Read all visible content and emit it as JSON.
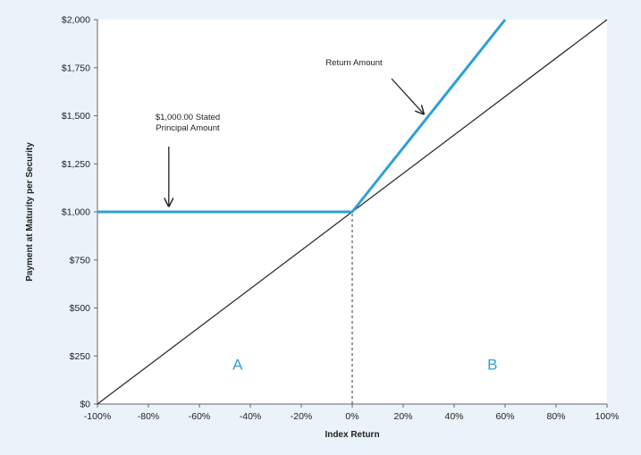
{
  "colors": {
    "payoff": "#2e9fd6",
    "reference": "#222222",
    "region_label": "#2e9fd6",
    "background": "#eaf3fa",
    "plot_area": "#ffffff"
  },
  "chart_data": {
    "type": "line",
    "title": "",
    "xlabel": "Index Return",
    "ylabel": "Payment at Maturity per Security",
    "xlim": [
      -100,
      100
    ],
    "ylim": [
      0,
      2000
    ],
    "x_tick_values": [
      -100,
      -80,
      -60,
      -40,
      -20,
      0,
      20,
      40,
      60,
      80,
      100
    ],
    "x_tick_labels": [
      "-100%",
      "-80%",
      "-60%",
      "-40%",
      "-20%",
      "0%",
      "20%",
      "40%",
      "60%",
      "80%",
      "100%"
    ],
    "y_tick_values": [
      0,
      250,
      500,
      750,
      1000,
      1250,
      1500,
      1750,
      2000
    ],
    "y_tick_labels": [
      "$0",
      "$250",
      "$500",
      "$750",
      "$1,000",
      "$1,250",
      "$1,500",
      "$1,750",
      "$2,000"
    ],
    "grid": false,
    "series": [
      {
        "points": [
          [
            -100,
            1000
          ],
          [
            0,
            1000
          ],
          [
            60,
            2000
          ]
        ],
        "color": "#2e9fd6"
      },
      {
        "points": [
          [
            -100,
            0
          ],
          [
            100,
            2000
          ]
        ],
        "color": "#222222"
      }
    ],
    "vertical_reference": {
      "x": 0,
      "y_from": 0,
      "y_to": 1000,
      "style": "dashed"
    },
    "annotations": [
      {
        "lines": [
          "Return Amount"
        ],
        "target": [
          28,
          1510
        ]
      },
      {
        "lines": [
          "$1,000.00 Stated",
          "Principal Amount"
        ],
        "target": [
          -72,
          1030
        ]
      }
    ],
    "regions": [
      {
        "label": "A",
        "x": -45,
        "y": 180
      },
      {
        "label": "B",
        "x": 55,
        "y": 180
      }
    ]
  }
}
